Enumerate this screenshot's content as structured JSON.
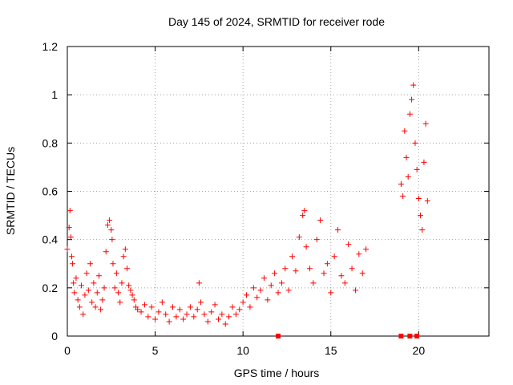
{
  "chart_data": {
    "type": "scatter",
    "title": "Day 145 of 2024, SRMTID for receiver rode",
    "xlabel": "GPS time / hours",
    "ylabel": "SRMTID / TECUs",
    "xlim": [
      0,
      24
    ],
    "ylim": [
      0,
      1.2
    ],
    "xticks": [
      0,
      5,
      10,
      15,
      20
    ],
    "xtick_labels": [
      "0",
      "5",
      "10",
      "15",
      "20"
    ],
    "yticks": [
      0,
      0.2,
      0.4,
      0.6,
      0.8,
      1,
      1.2
    ],
    "ytick_labels": [
      "0",
      "0.2",
      "0.4",
      "0.6",
      "0.8",
      "1",
      "1.2"
    ],
    "grid": true,
    "marker": "+",
    "series": [
      {
        "name": "SRMTID",
        "color": "#ff0000",
        "x": [
          0.0,
          0.1,
          0.15,
          0.2,
          0.25,
          0.3,
          0.35,
          0.4,
          0.5,
          0.6,
          0.7,
          0.8,
          0.9,
          1.0,
          1.1,
          1.2,
          1.3,
          1.4,
          1.5,
          1.6,
          1.7,
          1.8,
          1.9,
          2.0,
          2.1,
          2.2,
          2.3,
          2.4,
          2.5,
          2.55,
          2.6,
          2.7,
          2.8,
          2.9,
          3.0,
          3.1,
          3.2,
          3.3,
          3.4,
          3.5,
          3.6,
          3.7,
          3.8,
          3.9,
          4.0,
          4.2,
          4.4,
          4.6,
          4.8,
          5.0,
          5.2,
          5.4,
          5.6,
          5.8,
          6.0,
          6.2,
          6.4,
          6.6,
          6.8,
          7.0,
          7.2,
          7.4,
          7.5,
          7.6,
          7.8,
          8.0,
          8.2,
          8.4,
          8.6,
          8.8,
          9.0,
          9.2,
          9.4,
          9.6,
          9.8,
          10.0,
          10.2,
          10.4,
          10.6,
          10.8,
          11.0,
          11.2,
          11.4,
          11.6,
          11.8,
          12.0,
          12.2,
          12.4,
          12.6,
          12.8,
          13.0,
          13.2,
          13.4,
          13.5,
          13.6,
          13.8,
          14.0,
          14.2,
          14.4,
          14.6,
          14.8,
          15.0,
          15.2,
          15.4,
          15.6,
          15.8,
          16.0,
          16.2,
          16.4,
          16.6,
          16.8,
          17.0,
          19.0,
          19.1,
          19.2,
          19.3,
          19.4,
          19.5,
          19.6,
          19.7,
          19.8,
          19.9,
          20.0,
          20.1,
          20.2,
          20.3,
          20.4,
          20.5
        ],
        "y": [
          0.36,
          0.45,
          0.52,
          0.41,
          0.33,
          0.3,
          0.22,
          0.18,
          0.24,
          0.15,
          0.12,
          0.21,
          0.09,
          0.17,
          0.26,
          0.19,
          0.3,
          0.14,
          0.22,
          0.12,
          0.18,
          0.25,
          0.11,
          0.15,
          0.2,
          0.35,
          0.46,
          0.48,
          0.44,
          0.4,
          0.3,
          0.2,
          0.26,
          0.18,
          0.14,
          0.22,
          0.33,
          0.36,
          0.28,
          0.21,
          0.19,
          0.17,
          0.15,
          0.12,
          0.11,
          0.1,
          0.13,
          0.08,
          0.12,
          0.07,
          0.1,
          0.14,
          0.09,
          0.06,
          0.12,
          0.08,
          0.11,
          0.07,
          0.09,
          0.12,
          0.08,
          0.11,
          0.22,
          0.14,
          0.09,
          0.06,
          0.1,
          0.13,
          0.07,
          0.09,
          0.05,
          0.08,
          0.12,
          0.09,
          0.11,
          0.14,
          0.17,
          0.12,
          0.2,
          0.16,
          0.19,
          0.24,
          0.15,
          0.21,
          0.26,
          0.18,
          0.22,
          0.28,
          0.19,
          0.33,
          0.27,
          0.41,
          0.5,
          0.52,
          0.37,
          0.28,
          0.22,
          0.4,
          0.48,
          0.26,
          0.3,
          0.18,
          0.33,
          0.44,
          0.25,
          0.22,
          0.38,
          0.28,
          0.19,
          0.34,
          0.26,
          0.36,
          0.63,
          0.58,
          0.85,
          0.74,
          0.66,
          0.92,
          0.98,
          1.04,
          0.8,
          0.69,
          0.57,
          0.5,
          0.44,
          0.72,
          0.88,
          0.56
        ],
        "flagged_x": [
          12.0,
          19.0,
          19.5,
          19.9
        ]
      }
    ]
  }
}
